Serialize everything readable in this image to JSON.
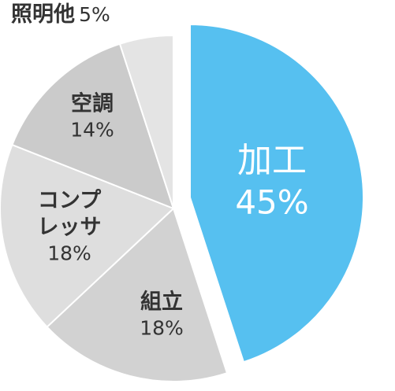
{
  "chart_data": {
    "type": "pie",
    "categories": [
      "加工",
      "組立",
      "コンプレッサ",
      "空調",
      "照明他"
    ],
    "values": [
      45,
      18,
      18,
      14,
      5
    ],
    "value_labels": [
      "45%",
      "18%",
      "18%",
      "14%",
      "5%"
    ],
    "colors": [
      "#56c0f0",
      "#d2d2d2",
      "#dedede",
      "#cbcbcb",
      "#e4e4e4"
    ],
    "explode": [
      true,
      false,
      false,
      false,
      false
    ]
  }
}
